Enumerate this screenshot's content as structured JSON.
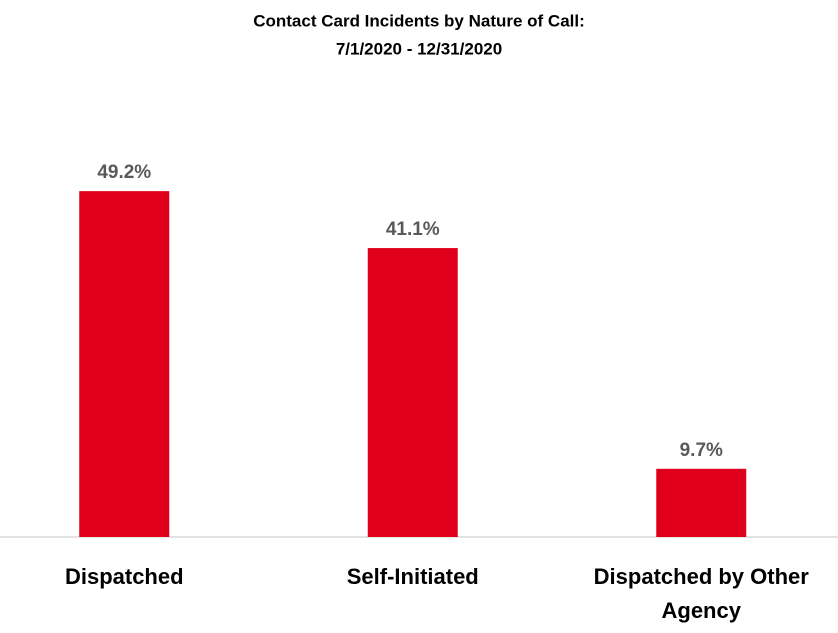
{
  "chart_data": {
    "type": "bar",
    "title": "Contact Card Incidents by Nature of Call:",
    "subtitle": "7/1/2020 - 12/31/2020",
    "categories": [
      "Dispatched",
      "Self-Initiated",
      "Dispatched by Other Agency"
    ],
    "values": [
      49.2,
      41.1,
      9.7
    ],
    "value_labels": [
      "49.2%",
      "41.1%",
      "9.7%"
    ],
    "color": "#e0001b"
  }
}
